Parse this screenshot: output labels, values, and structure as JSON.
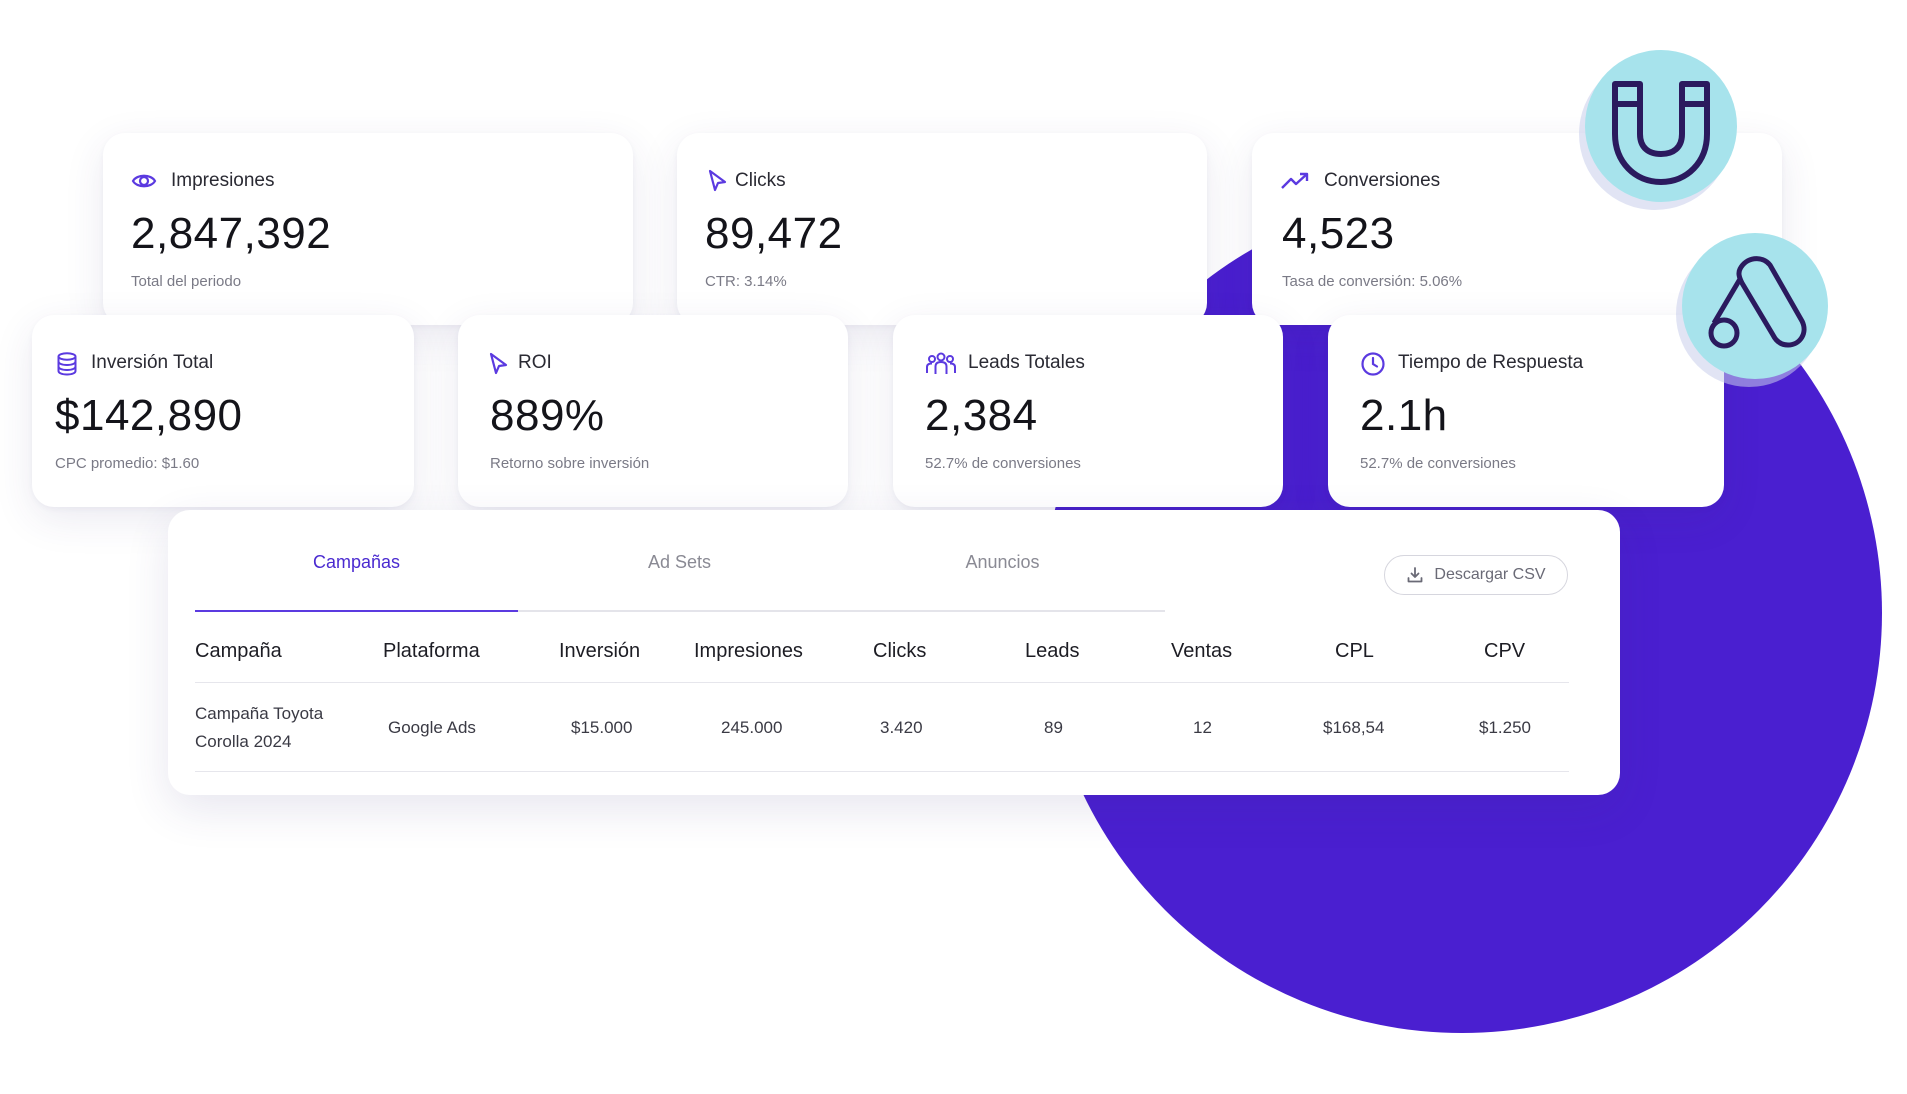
{
  "colors": {
    "accent": "#5b3ae0",
    "background_circle": "#4a1fd0",
    "badge": "#a7e3ec"
  },
  "badges": [
    {
      "icon": "magnet-icon"
    },
    {
      "icon": "google-ads-icon"
    }
  ],
  "kpis_top": [
    {
      "icon": "eye-icon",
      "label": "Impresiones",
      "value": "2,847,392",
      "sub": "Total del periodo"
    },
    {
      "icon": "cursor-icon",
      "label": "Clicks",
      "value": "89,472",
      "sub": "CTR: 3.14%"
    },
    {
      "icon": "trending-up-icon",
      "label": "Conversiones",
      "value": "4,523",
      "sub": "Tasa de conversión: 5.06%"
    }
  ],
  "kpis_bottom": [
    {
      "icon": "coins-icon",
      "label": "Inversión Total",
      "value": "$142,890",
      "sub": "CPC promedio: $1.60"
    },
    {
      "icon": "cursor-icon",
      "label": "ROI",
      "value": "889%",
      "sub": "Retorno sobre inversión"
    },
    {
      "icon": "users-icon",
      "label": "Leads Totales",
      "value": "2,384",
      "sub": "52.7% de conversiones"
    },
    {
      "icon": "clock-icon",
      "label": "Tiempo de Respuesta",
      "value": "2.1h",
      "sub": "52.7% de conversiones"
    }
  ],
  "tabs": [
    {
      "label": "Campañas",
      "active": true
    },
    {
      "label": "Ad Sets",
      "active": false
    },
    {
      "label": "Anuncios",
      "active": false
    }
  ],
  "download_button": {
    "label": "Descargar CSV",
    "icon": "download-icon"
  },
  "table": {
    "columns": [
      "Campaña",
      "Plataforma",
      "Inversión",
      "Impresiones",
      "Clicks",
      "Leads",
      "Ventas",
      "CPL",
      "CPV"
    ],
    "rows": [
      [
        "Campaña Toyota Corolla 2024",
        "Google Ads",
        "$15.000",
        "245.000",
        "3.420",
        "89",
        "12",
        "$168,54",
        "$1.250"
      ]
    ]
  }
}
